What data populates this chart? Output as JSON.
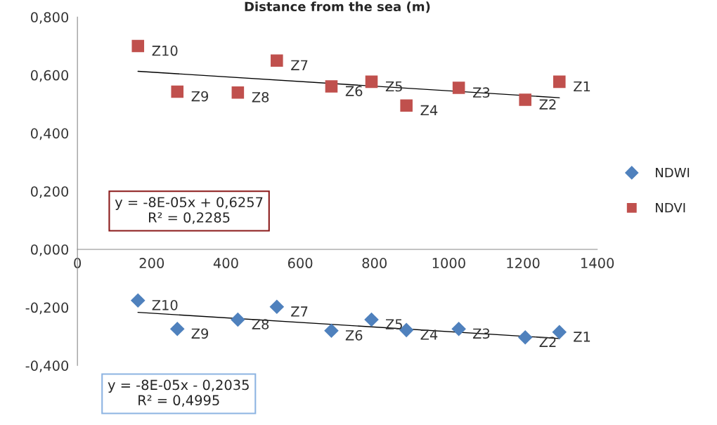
{
  "chart_data": {
    "type": "scatter",
    "title": "Distance from the sea (m)",
    "xlim": [
      0,
      1400
    ],
    "xticks": [
      0,
      200,
      400,
      600,
      800,
      1000,
      1200,
      1400
    ],
    "ylim": [
      -0.4,
      0.8
    ],
    "yticks": [
      {
        "value": -0.4,
        "label": "-0,400"
      },
      {
        "value": -0.2,
        "label": "-0,200"
      },
      {
        "value": 0,
        "label": "0,000"
      },
      {
        "value": 0.2,
        "label": "0,200"
      },
      {
        "value": 0.4,
        "label": "0,400"
      },
      {
        "value": 0.6,
        "label": "0,600"
      },
      {
        "value": 0.8,
        "label": "0,800"
      }
    ],
    "grid": false,
    "legend": "right",
    "series": [
      {
        "name": "NDWI",
        "color": "#4f81bd",
        "marker": "diamond",
        "x": [
          1298,
          1206,
          1027,
          886,
          792,
          684,
          537,
          432,
          269,
          163
        ],
        "values": [
          -0.285,
          -0.303,
          -0.274,
          -0.278,
          -0.242,
          -0.28,
          -0.198,
          -0.242,
          -0.274,
          -0.176
        ]
      },
      {
        "name": "NDVI",
        "color": "#c0504d",
        "marker": "square",
        "x": [
          1298,
          1206,
          1027,
          886,
          792,
          684,
          537,
          432,
          269,
          163
        ],
        "values": [
          0.577,
          0.515,
          0.556,
          0.495,
          0.577,
          0.561,
          0.65,
          0.54,
          0.543,
          0.7
        ]
      },
      {
        "type": "line",
        "color": "#000000",
        "x": [
          163,
          1298
        ],
        "values": [
          -0.217,
          -0.307
        ]
      },
      {
        "type": "line",
        "color": "#000000",
        "x": [
          163,
          1298
        ],
        "values": [
          0.613,
          0.522
        ]
      }
    ],
    "annotations": [
      {
        "text": "Z1",
        "x": 1298,
        "y": 0.577
      },
      {
        "text": "Z2",
        "x": 1206,
        "y": 0.515
      },
      {
        "text": "Z3",
        "x": 1027,
        "y": 0.556
      },
      {
        "text": "Z4",
        "x": 886,
        "y": 0.495
      },
      {
        "text": "Z5",
        "x": 792,
        "y": 0.577
      },
      {
        "text": "Z6",
        "x": 684,
        "y": 0.561
      },
      {
        "text": "Z7",
        "x": 537,
        "y": 0.65
      },
      {
        "text": "Z8",
        "x": 432,
        "y": 0.54
      },
      {
        "text": "Z9",
        "x": 269,
        "y": 0.543
      },
      {
        "text": "Z10",
        "x": 163,
        "y": 0.7
      },
      {
        "text": "Z1",
        "x": 1298,
        "y": -0.285
      },
      {
        "text": "Z2",
        "x": 1206,
        "y": -0.303
      },
      {
        "text": "Z3",
        "x": 1027,
        "y": -0.274
      },
      {
        "text": "Z4",
        "x": 886,
        "y": -0.278
      },
      {
        "text": "Z5",
        "x": 792,
        "y": -0.242
      },
      {
        "text": "Z6",
        "x": 684,
        "y": -0.28
      },
      {
        "text": "Z7",
        "x": 537,
        "y": -0.198
      },
      {
        "text": "Z8",
        "x": 432,
        "y": -0.242
      },
      {
        "text": "Z9",
        "x": 269,
        "y": -0.274
      },
      {
        "text": "Z10",
        "x": 163,
        "y": -0.176
      },
      "y = -8E-05x + 0,6257\nR² = 0,2285",
      "y = -8E-05x - 0,2035\nR² = 0,4995"
    ]
  }
}
